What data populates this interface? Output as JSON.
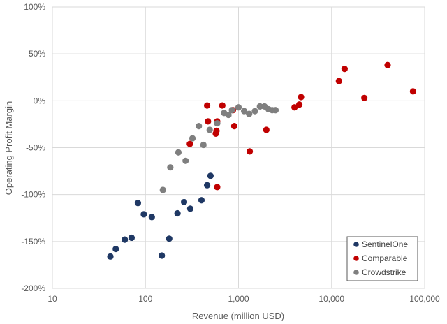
{
  "chart_data": {
    "type": "scatter",
    "xlabel": "Revenue (million USD)",
    "ylabel": "Operating Profit Margin",
    "x_scale": "log",
    "xlim": [
      10,
      100000
    ],
    "ylim": [
      -200,
      100
    ],
    "x_ticks": [
      10,
      100,
      1000,
      10000,
      100000
    ],
    "x_tick_labels": [
      "10",
      "100",
      "1,000",
      "10,000",
      "100,000"
    ],
    "y_ticks": [
      100,
      50,
      0,
      -50,
      -100,
      -150,
      -200
    ],
    "y_tick_labels": [
      "100%",
      "50%",
      "0%",
      "-50%",
      "-100%",
      "-150%",
      "-200%"
    ],
    "grid": true,
    "legend_position": "bottom-right",
    "series": [
      {
        "name": "SentinelOne",
        "color": "#1f3864",
        "points": [
          [
            42,
            -166
          ],
          [
            48,
            -158
          ],
          [
            60,
            -148
          ],
          [
            71,
            -146
          ],
          [
            83,
            -109
          ],
          [
            96,
            -121
          ],
          [
            117,
            -124
          ],
          [
            150,
            -165
          ],
          [
            180,
            -147
          ],
          [
            221,
            -120
          ],
          [
            260,
            -108
          ],
          [
            303,
            -115
          ],
          [
            400,
            -106
          ],
          [
            460,
            -90
          ],
          [
            500,
            -80
          ]
        ]
      },
      {
        "name": "Comparable",
        "color": "#c00000",
        "points": [
          [
            300,
            -46
          ],
          [
            460,
            -5
          ],
          [
            470,
            -22
          ],
          [
            570,
            -35
          ],
          [
            580,
            -32
          ],
          [
            590,
            -22
          ],
          [
            590,
            -92
          ],
          [
            670,
            -5
          ],
          [
            870,
            -10
          ],
          [
            900,
            -27
          ],
          [
            1320,
            -54
          ],
          [
            1990,
            -31
          ],
          [
            4000,
            -7
          ],
          [
            4500,
            -4
          ],
          [
            4700,
            4
          ],
          [
            12000,
            21
          ],
          [
            13800,
            34
          ],
          [
            22500,
            3
          ],
          [
            40000,
            38
          ],
          [
            75000,
            10
          ]
        ]
      },
      {
        "name": "Crowdstrike",
        "color": "#7f7f7f",
        "points": [
          [
            154,
            -95
          ],
          [
            185,
            -71
          ],
          [
            226,
            -55
          ],
          [
            270,
            -64
          ],
          [
            320,
            -40
          ],
          [
            375,
            -27
          ],
          [
            420,
            -47
          ],
          [
            490,
            -31
          ],
          [
            590,
            -24
          ],
          [
            700,
            -13
          ],
          [
            780,
            -15
          ],
          [
            850,
            -10
          ],
          [
            1000,
            -7
          ],
          [
            1150,
            -11
          ],
          [
            1300,
            -14
          ],
          [
            1500,
            -11
          ],
          [
            1700,
            -6
          ],
          [
            1900,
            -6
          ],
          [
            2100,
            -9
          ],
          [
            2300,
            -10
          ],
          [
            2500,
            -10
          ]
        ]
      }
    ]
  }
}
